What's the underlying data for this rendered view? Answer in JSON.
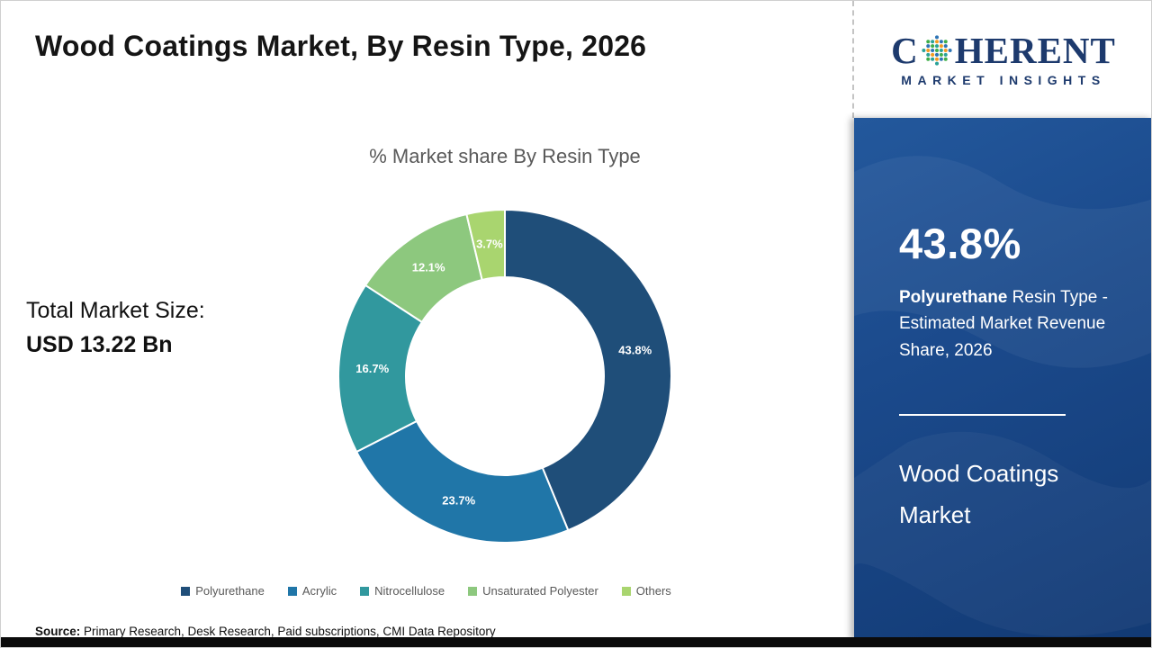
{
  "header": {
    "title": "Wood Coatings Market, By Resin Type, 2026"
  },
  "logo": {
    "word_start": "C",
    "word_end": "HERENT",
    "line2": "MARKET INSIGHTS",
    "navy": "#1d3a6d",
    "globe_colors": [
      "#3fae49",
      "#2e75b6",
      "#f59b20",
      "#2aa198"
    ]
  },
  "main": {
    "total_label": "Total Market Size:",
    "total_value": "USD 13.22 Bn"
  },
  "chart_data": {
    "type": "pie",
    "donut": true,
    "inner_radius_ratio": 0.595,
    "title": "% Market share By Resin Type",
    "categories": [
      "Polyurethane",
      "Acrylic",
      "Nitrocellulose",
      "Unsaturated Polyester",
      "Others"
    ],
    "values": [
      43.8,
      23.7,
      16.7,
      12.1,
      3.7
    ],
    "colors": [
      "#1F4E79",
      "#2076A8",
      "#31989E",
      "#8DC87E",
      "#A9D56F"
    ],
    "value_suffix": "%",
    "legend_position": "bottom",
    "start_angle_deg": 0,
    "direction": "clockwise"
  },
  "sidebar": {
    "highlight_value": "43.8%",
    "highlight_bold": "Polyurethane",
    "highlight_rest": " Resin Type - Estimated Market Revenue Share, 2026",
    "market_name": "Wood Coatings Market"
  },
  "footer": {
    "source_label": "Source:",
    "source_text": " Primary Research, Desk Research, Paid subscriptions, CMI Data Repository"
  }
}
